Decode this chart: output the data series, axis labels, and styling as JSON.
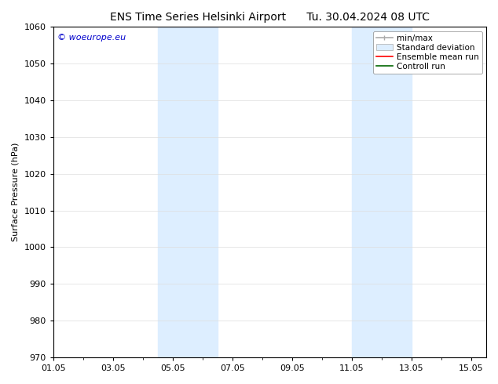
{
  "title_left": "ENS Time Series Helsinki Airport",
  "title_right": "Tu. 30.04.2024 08 UTC",
  "ylabel": "Surface Pressure (hPa)",
  "ylim": [
    970,
    1060
  ],
  "yticks": [
    970,
    980,
    990,
    1000,
    1010,
    1020,
    1030,
    1040,
    1050,
    1060
  ],
  "xlim": [
    0,
    14.5
  ],
  "xtick_labels": [
    "01.05",
    "03.05",
    "05.05",
    "07.05",
    "09.05",
    "11.05",
    "13.05",
    "15.05"
  ],
  "xtick_positions": [
    0,
    2,
    4,
    6,
    8,
    10,
    12,
    14
  ],
  "shaded_bands": [
    {
      "x_start": 3.5,
      "x_end": 5.5,
      "color": "#ddeeff"
    },
    {
      "x_start": 10.0,
      "x_end": 12.0,
      "color": "#ddeeff"
    }
  ],
  "watermark_text": "© woeurope.eu",
  "watermark_color": "#0000cc",
  "background_color": "#ffffff",
  "plot_bg_color": "#ffffff",
  "legend_items": [
    {
      "label": "min/max",
      "color": "#aaaaaa",
      "lw": 1.2,
      "style": "minmax"
    },
    {
      "label": "Standard deviation",
      "color": "#ddeeff",
      "lw": 8,
      "style": "band"
    },
    {
      "label": "Ensemble mean run",
      "color": "#ff0000",
      "lw": 1.2,
      "style": "line"
    },
    {
      "label": "Controll run",
      "color": "#006600",
      "lw": 1.2,
      "style": "line"
    }
  ],
  "font_size_title": 10,
  "font_size_axis": 8,
  "font_size_legend": 7.5,
  "font_size_watermark": 8,
  "grid_color": "#dddddd",
  "spine_color": "#000000"
}
